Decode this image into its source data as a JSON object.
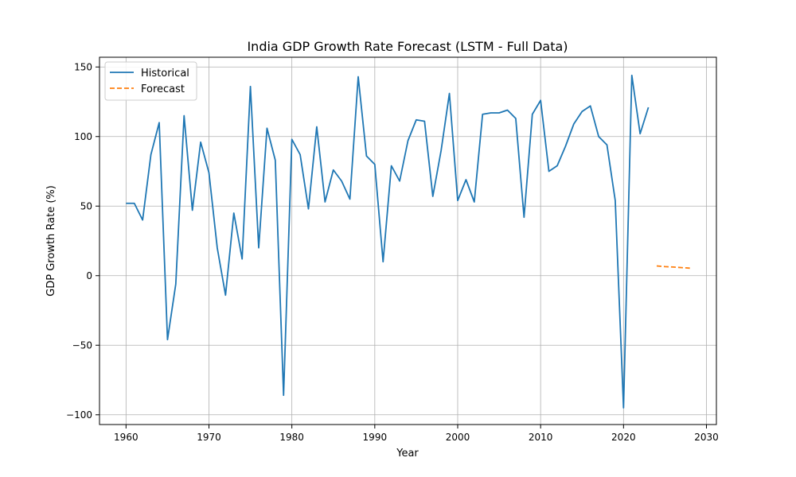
{
  "chart_data": {
    "type": "line",
    "title": "India GDP Growth Rate Forecast (LSTM - Full Data)",
    "xlabel": "Year",
    "ylabel": "GDP Growth Rate (%)",
    "xlim": [
      1956.8,
      2031.2
    ],
    "ylim": [
      -107,
      157
    ],
    "xticks": [
      1960,
      1970,
      1980,
      1990,
      2000,
      2010,
      2020,
      2030
    ],
    "yticks": [
      -100,
      -50,
      0,
      50,
      100,
      150
    ],
    "xtick_labels": [
      "1960",
      "1970",
      "1980",
      "1990",
      "2000",
      "2010",
      "2020",
      "2030"
    ],
    "ytick_labels": [
      "−100",
      "−50",
      "0",
      "50",
      "100",
      "150"
    ],
    "grid": true,
    "legend_position": "top-left",
    "series": [
      {
        "name": "Historical",
        "style": "solid",
        "color": "#1f77b4",
        "x": [
          1960,
          1961,
          1962,
          1963,
          1964,
          1965,
          1966,
          1967,
          1968,
          1969,
          1970,
          1971,
          1972,
          1973,
          1974,
          1975,
          1976,
          1977,
          1978,
          1979,
          1980,
          1981,
          1982,
          1983,
          1984,
          1985,
          1986,
          1987,
          1988,
          1989,
          1990,
          1991,
          1992,
          1993,
          1994,
          1995,
          1996,
          1997,
          1998,
          1999,
          2000,
          2001,
          2002,
          2003,
          2004,
          2005,
          2006,
          2007,
          2008,
          2009,
          2010,
          2011,
          2012,
          2013,
          2014,
          2015,
          2016,
          2017,
          2018,
          2019,
          2020,
          2021,
          2022,
          2023
        ],
        "y": [
          52,
          52,
          40,
          87,
          110,
          -46,
          -6,
          115,
          47,
          96,
          74,
          20,
          -14,
          45,
          12,
          136,
          20,
          106,
          83,
          -86,
          98,
          87,
          48,
          107,
          53,
          76,
          68,
          55,
          143,
          86,
          80,
          10,
          79,
          68,
          97,
          112,
          111,
          57,
          90,
          131,
          54,
          69,
          53,
          116,
          117,
          117,
          119,
          113,
          42,
          116,
          126,
          75,
          79,
          93,
          109,
          118,
          122,
          100,
          94,
          54,
          -95,
          144,
          102,
          121
        ]
      },
      {
        "name": "Forecast",
        "style": "dashed",
        "color": "#ff7f0e",
        "x": [
          2024,
          2025,
          2026,
          2027,
          2028
        ],
        "y": [
          7,
          6.5,
          6.2,
          5.8,
          5.4
        ]
      }
    ]
  }
}
